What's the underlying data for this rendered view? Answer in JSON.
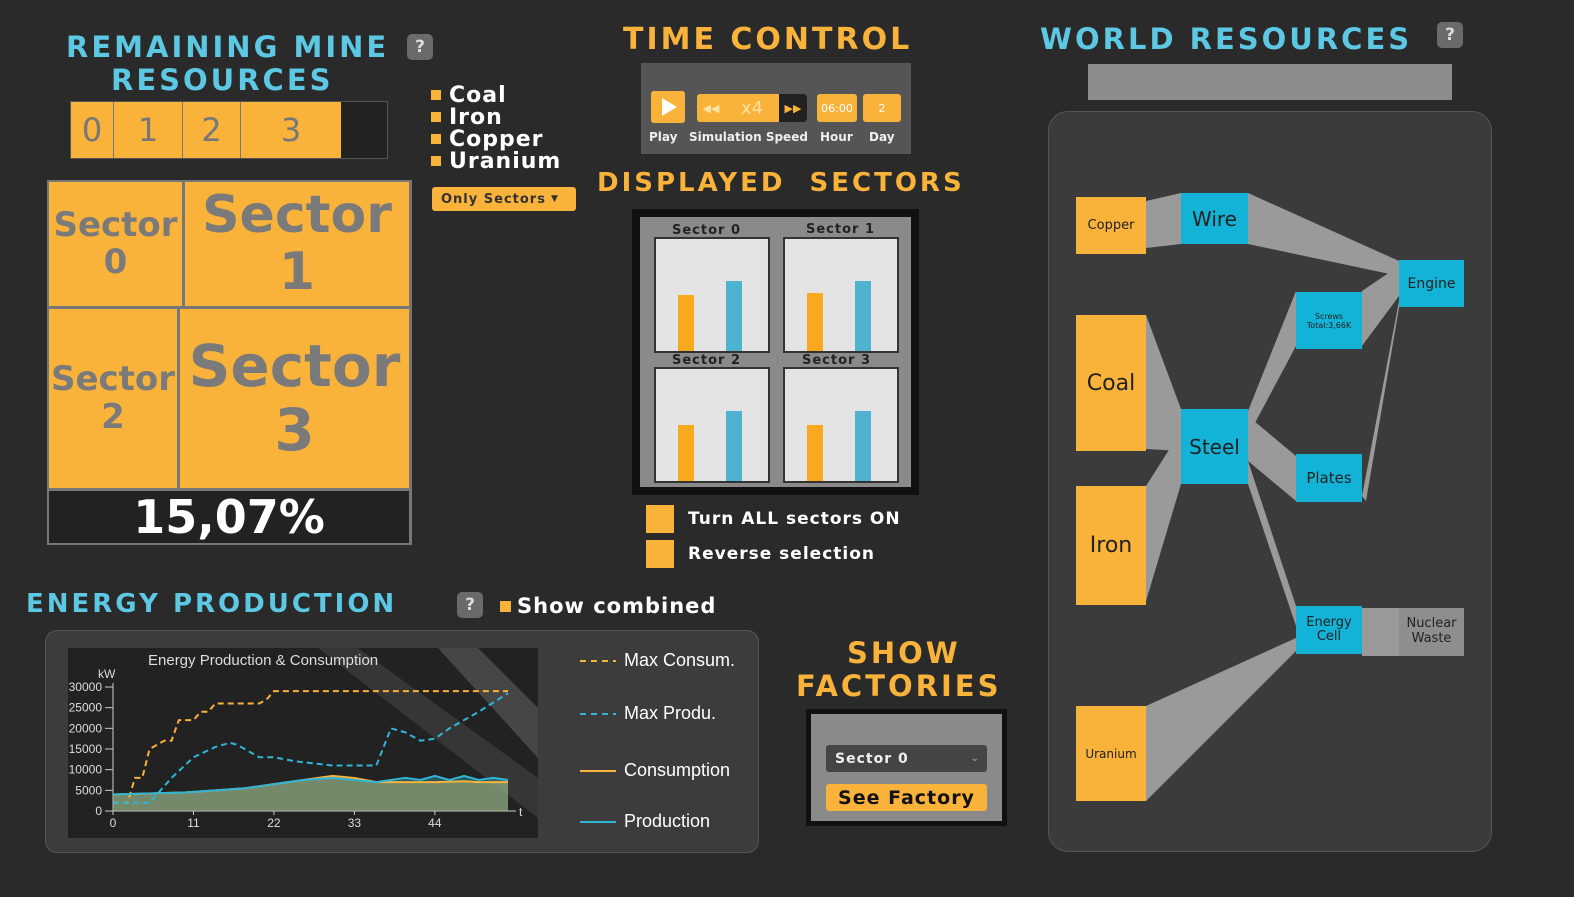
{
  "mine": {
    "title_line1": "REMAINING MINE",
    "title_line2": "RESOURCES",
    "help": "?",
    "scale": [
      "0",
      "1",
      "2",
      "3"
    ],
    "legend": [
      "Coal",
      "Iron",
      "Copper",
      "Uranium"
    ],
    "dropdown": "Only Sectors",
    "sectors": [
      {
        "word": "Sector",
        "num": "0"
      },
      {
        "word": "Sector",
        "num": "1"
      },
      {
        "word": "Sector",
        "num": "2"
      },
      {
        "word": "Sector",
        "num": "3"
      }
    ],
    "percentage": "15,07%"
  },
  "time": {
    "title": "TIME CONTROL",
    "speed": "x4",
    "hour": "06:00",
    "day": "2",
    "labels": {
      "play": "Play",
      "speed": "Simulation Speed",
      "hour": "Hour",
      "day": "Day"
    }
  },
  "displayed": {
    "title": "DISPLAYED  SECTORS",
    "sectors": [
      "Sector 0",
      "Sector 1",
      "Sector 2",
      "Sector 3"
    ],
    "all_on": "Turn ALL sectors ON",
    "reverse": "Reverse selection"
  },
  "energy": {
    "title": "ENERGY PRODUCTION",
    "help": "?",
    "show_combined": "Show combined",
    "chart_title": "Energy Production & Consumption",
    "unit": "kW",
    "x_unit": "t",
    "legend": [
      "Max Consum.",
      "Max Produ.",
      "Consumption",
      "Production"
    ]
  },
  "chart_data": {
    "type": "line",
    "title": "Energy Production & Consumption",
    "ylabel": "kW",
    "xlabel": "t",
    "ylim": [
      0,
      30000
    ],
    "yticks": [
      "30000",
      "25000",
      "20000",
      "15000",
      "10000",
      "5000",
      "0"
    ],
    "xticks": [
      "0",
      "11",
      "22",
      "33",
      "44"
    ],
    "series": [
      {
        "name": "Max Consum.",
        "color": "#f9b23a",
        "dashed": true,
        "x": [
          0,
          2,
          3,
          4,
          5,
          6,
          7,
          8,
          9,
          10,
          11,
          12,
          13,
          14,
          15,
          16,
          17,
          18,
          19,
          20,
          21,
          22,
          30,
          40,
          50,
          54
        ],
        "y": [
          2000,
          2000,
          8000,
          8000,
          15000,
          16000,
          17000,
          17000,
          22000,
          22000,
          22000,
          24000,
          24000,
          26000,
          26000,
          26000,
          26000,
          26000,
          26000,
          26000,
          27000,
          29000,
          29000,
          29000,
          29000,
          29000
        ]
      },
      {
        "name": "Max Produ.",
        "color": "#2fb6d6",
        "dashed": true,
        "x": [
          0,
          5,
          8,
          11,
          14,
          16,
          17,
          19,
          20,
          22,
          25,
          30,
          34,
          36,
          38,
          40,
          42,
          44,
          46,
          48,
          50,
          54
        ],
        "y": [
          2000,
          2000,
          8000,
          13000,
          15500,
          16500,
          16000,
          14000,
          13000,
          13000,
          12000,
          11000,
          11000,
          11000,
          20000,
          19000,
          17000,
          17500,
          20000,
          22000,
          24000,
          28500
        ]
      },
      {
        "name": "Consumption",
        "color": "#f9b23a",
        "dashed": false,
        "x": [
          0,
          10,
          14,
          18,
          22,
          26,
          30,
          33,
          36,
          40,
          44,
          48,
          50,
          54
        ],
        "y": [
          4000,
          4500,
          5000,
          5500,
          6500,
          7500,
          8500,
          8000,
          7000,
          7000,
          7000,
          7200,
          7000,
          7000
        ]
      },
      {
        "name": "Production",
        "color": "#2fb6d6",
        "dashed": false,
        "x": [
          0,
          10,
          14,
          18,
          22,
          26,
          30,
          33,
          36,
          38,
          40,
          42,
          44,
          46,
          48,
          50,
          52,
          54
        ],
        "y": [
          4000,
          4500,
          5000,
          5500,
          6500,
          7500,
          8000,
          7500,
          7000,
          7500,
          8000,
          7500,
          8500,
          7500,
          8500,
          7500,
          8000,
          7500
        ]
      }
    ]
  },
  "factories": {
    "title_line1": "SHOW",
    "title_line2": "FACTORIES",
    "selected": "Sector 0",
    "button": "See Factory"
  },
  "world": {
    "title": "WORLD RESOURCES",
    "help": "?",
    "nodes": {
      "copper": "Copper",
      "coal": "Coal",
      "iron": "Iron",
      "uranium": "Uranium",
      "wire": "Wire",
      "steel": "Steel",
      "screws": "Screws",
      "screws_total": "Total:3,66K",
      "plates": "Plates",
      "engine": "Engine",
      "energy_cell_1": "Energy",
      "energy_cell_2": "Cell",
      "waste_1": "Nuclear",
      "waste_2": "Waste"
    }
  }
}
